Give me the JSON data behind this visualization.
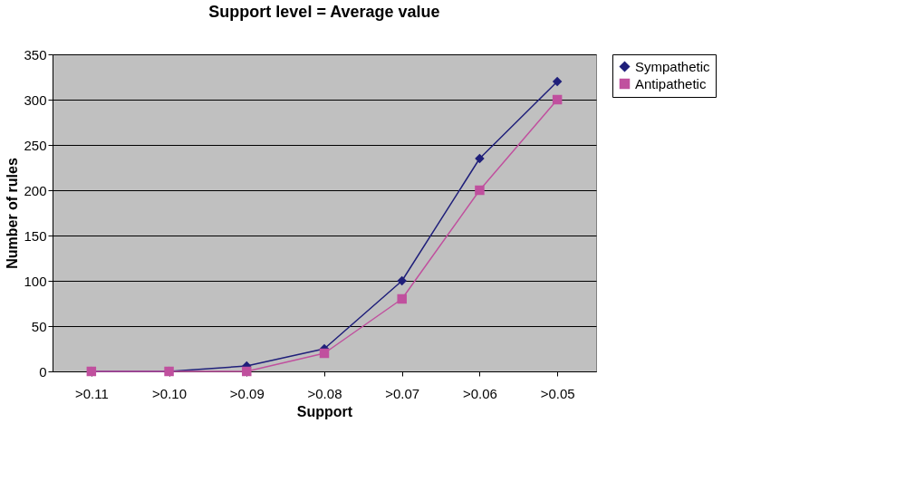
{
  "chart_data": {
    "type": "line",
    "title": "Support level = Average value",
    "xlabel": "Support",
    "ylabel": "Number of rules",
    "categories": [
      ">0.11",
      ">0.10",
      ">0.09",
      ">0.08",
      ">0.07",
      ">0.06",
      ">0.05"
    ],
    "series": [
      {
        "name": "Sympathetic",
        "color": "#1f1f7a",
        "marker": "diamond",
        "values": [
          0,
          0,
          6,
          25,
          100,
          235,
          320
        ]
      },
      {
        "name": "Antipathetic",
        "color": "#c0509e",
        "marker": "square",
        "values": [
          0,
          0,
          0,
          20,
          80,
          200,
          300
        ]
      }
    ],
    "ylim": [
      0,
      350
    ],
    "yticks": [
      0,
      50,
      100,
      150,
      200,
      250,
      300,
      350
    ],
    "grid": "y",
    "legend": "right"
  }
}
